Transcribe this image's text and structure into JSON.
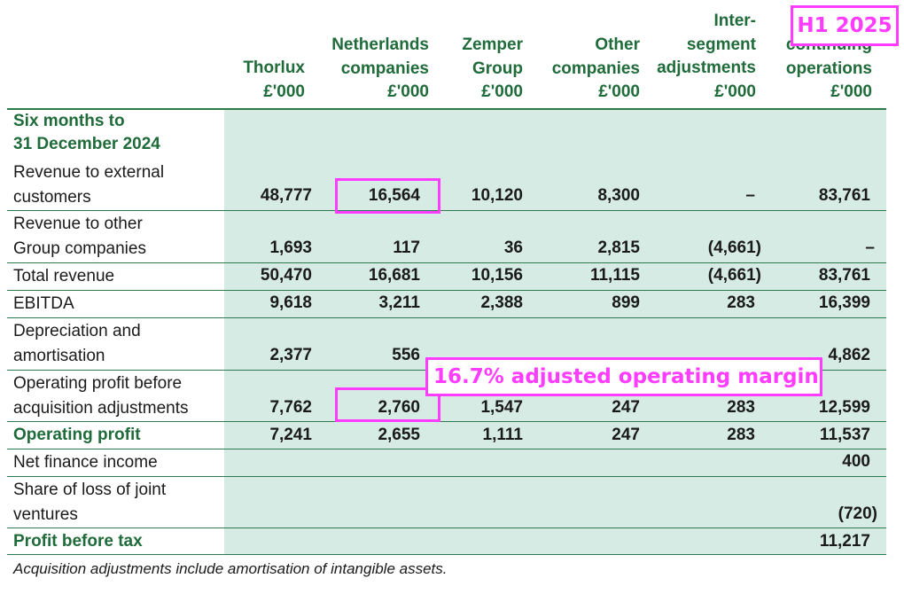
{
  "columns": [
    {
      "lines": [
        "Thorlux",
        "£'000"
      ]
    },
    {
      "lines": [
        "Netherlands",
        "companies",
        "£'000"
      ]
    },
    {
      "lines": [
        "Zemper",
        "Group",
        "£'000"
      ]
    },
    {
      "lines": [
        "Other",
        "companies",
        "£'000"
      ]
    },
    {
      "lines": [
        "Inter-",
        "segment",
        "adjustments",
        "£'000"
      ]
    },
    {
      "lines": [
        "continuing",
        "operations",
        "£'000"
      ]
    }
  ],
  "section_title": [
    "Six months to",
    "31 December 2024"
  ],
  "rows": [
    {
      "label": [
        "Revenue to external",
        "customers"
      ],
      "values": [
        "48,777",
        "16,564",
        "10,120",
        "8,300",
        "–",
        "83,761"
      ]
    },
    {
      "label": [
        "Revenue to other",
        "Group companies"
      ],
      "values": [
        "1,693",
        "117",
        "36",
        "2,815",
        "(4,661)",
        "–"
      ]
    },
    {
      "label": [
        "Total revenue"
      ],
      "values": [
        "50,470",
        "16,681",
        "10,156",
        "11,115",
        "(4,661)",
        "83,761"
      ]
    },
    {
      "label": [
        "EBITDA"
      ],
      "values": [
        "9,618",
        "3,211",
        "2,388",
        "899",
        "283",
        "16,399"
      ]
    },
    {
      "label": [
        "Depreciation and",
        "amortisation"
      ],
      "values": [
        "2,377",
        "556",
        "",
        "",
        "",
        "4,862"
      ]
    },
    {
      "label": [
        "Operating profit before",
        "acquisition adjustments"
      ],
      "values": [
        "7,762",
        "2,760",
        "1,547",
        "247",
        "283",
        "12,599"
      ]
    },
    {
      "label": [
        "Operating profit"
      ],
      "values": [
        "7,241",
        "2,655",
        "1,111",
        "247",
        "283",
        "11,537"
      ]
    },
    {
      "label": [
        "Net finance income"
      ],
      "values": [
        "",
        "",
        "",
        "",
        "",
        "400"
      ]
    },
    {
      "label": [
        "Share of loss of joint",
        "ventures"
      ],
      "values": [
        "",
        "",
        "",
        "",
        "",
        "(720)"
      ]
    },
    {
      "label": [
        "Profit before tax"
      ],
      "values": [
        "",
        "",
        "",
        "",
        "",
        "11,217"
      ]
    }
  ],
  "footnote": "Acquisition adjustments include amortisation of intangible assets.",
  "annotations": {
    "period": "H1 2025",
    "margin": "16.7% adjusted operating margin"
  },
  "colors": {
    "header_green": "#1f6b3a",
    "shade": "#d6ebe3",
    "annotation_magenta": "#ff3cff"
  }
}
